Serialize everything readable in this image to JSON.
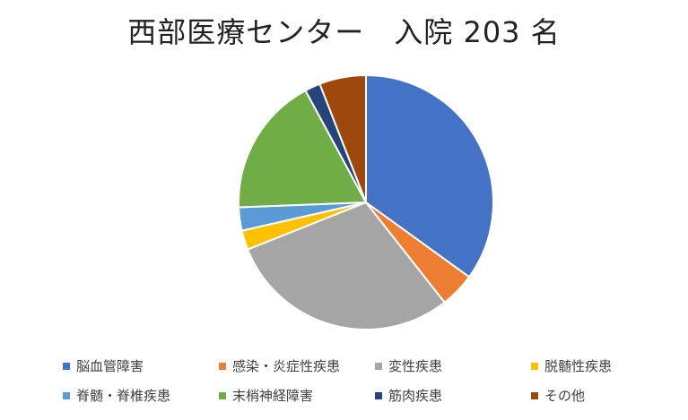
{
  "chart_data": {
    "type": "pie",
    "title": "西部医療センター　入院 203 名",
    "categories": [
      "脳血管障害",
      "感染・炎症性疾患",
      "変性疾患",
      "脱髄性疾患",
      "脊髄・脊椎疾患",
      "末梢神経障害",
      "筋肉疾患",
      "その他"
    ],
    "values": [
      71,
      9,
      60,
      5,
      6,
      36,
      4,
      12
    ],
    "colors": [
      "#4472C4",
      "#ED7D31",
      "#A5A5A5",
      "#FFC000",
      "#5B9BD5",
      "#70AD47",
      "#264478",
      "#9E480E"
    ],
    "legend": "bottom",
    "start_angle": "12 o'clock",
    "direction": "clockwise"
  }
}
